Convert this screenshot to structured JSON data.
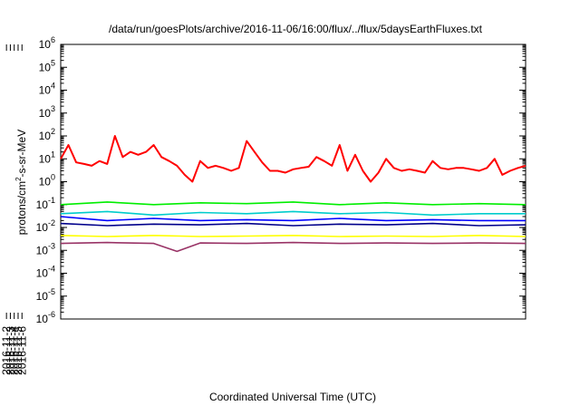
{
  "chart_data": {
    "type": "line",
    "title": "/data/run/goesPlots/archive/2016-11-06/16:00/flux/../flux/5daysEarthFluxes.txt",
    "xlabel": "Coordinated Universal Time (UTC)",
    "ylabel": {
      "pre": "protons/cm",
      "sup": "2",
      "post": "-s-sr-MeV"
    },
    "y_scale": "log",
    "ylim": [
      1e-06,
      1000000.0
    ],
    "y_ticks": [
      {
        "exp": "-6"
      },
      {
        "exp": "-5"
      },
      {
        "exp": "-4"
      },
      {
        "exp": "-3"
      },
      {
        "exp": "-2"
      },
      {
        "exp": "-1"
      },
      {
        "exp": "0"
      },
      {
        "exp": "1"
      },
      {
        "exp": "2"
      },
      {
        "exp": "3"
      },
      {
        "exp": "4"
      },
      {
        "exp": "5"
      },
      {
        "exp": "6"
      }
    ],
    "y_tick_base": "10",
    "xlim": [
      "2016-11-01T16:00",
      "2016-11-06T16:00"
    ],
    "x_ticks": [
      "2016-11-2",
      "2016-11-3",
      "2016-11-4",
      "2016-11-5",
      "2016-11-6"
    ],
    "grid": false,
    "series": [
      {
        "color": "#ff0000",
        "x": [
          "2016-11-01T16:00",
          "2016-11-01T18:00",
          "2016-11-01T20:00",
          "2016-11-01T22:00",
          "2016-11-02T00:00",
          "2016-11-02T02:00",
          "2016-11-02T04:00",
          "2016-11-02T06:00",
          "2016-11-02T08:00",
          "2016-11-02T10:00",
          "2016-11-02T12:00",
          "2016-11-02T14:00",
          "2016-11-02T16:00",
          "2016-11-02T18:00",
          "2016-11-02T20:00",
          "2016-11-02T22:00",
          "2016-11-03T00:00",
          "2016-11-03T02:00",
          "2016-11-03T04:00",
          "2016-11-03T06:00",
          "2016-11-03T08:00",
          "2016-11-03T10:00",
          "2016-11-03T12:00",
          "2016-11-03T14:00",
          "2016-11-03T16:00",
          "2016-11-03T18:00",
          "2016-11-03T20:00",
          "2016-11-03T22:00",
          "2016-11-04T00:00",
          "2016-11-04T02:00",
          "2016-11-04T04:00",
          "2016-11-04T06:00",
          "2016-11-04T08:00",
          "2016-11-04T10:00",
          "2016-11-04T12:00",
          "2016-11-04T14:00",
          "2016-11-04T16:00",
          "2016-11-04T18:00",
          "2016-11-04T20:00",
          "2016-11-04T22:00",
          "2016-11-05T00:00",
          "2016-11-05T02:00",
          "2016-11-05T04:00",
          "2016-11-05T06:00",
          "2016-11-05T08:00",
          "2016-11-05T10:00",
          "2016-11-05T12:00",
          "2016-11-05T14:00",
          "2016-11-05T16:00",
          "2016-11-05T18:00",
          "2016-11-05T20:00",
          "2016-11-05T22:00",
          "2016-11-06T00:00",
          "2016-11-06T02:00",
          "2016-11-06T04:00",
          "2016-11-06T06:00",
          "2016-11-06T08:00",
          "2016-11-06T10:00",
          "2016-11-06T12:00",
          "2016-11-06T14:00",
          "2016-11-06T16:00"
        ],
        "values": [
          10,
          40,
          7,
          6,
          5,
          8,
          6,
          100,
          12,
          20,
          15,
          20,
          40,
          12,
          8,
          5,
          2,
          1,
          8,
          4,
          5,
          4,
          3,
          4,
          60,
          20,
          7,
          3,
          3,
          2.5,
          3.5,
          4,
          4.5,
          12,
          8,
          5,
          40,
          3,
          15,
          3,
          1,
          2.5,
          10,
          4,
          3,
          3.5,
          3,
          2.5,
          8,
          4,
          3.5,
          4,
          4,
          3.5,
          3,
          4,
          10,
          2,
          3,
          4,
          5
        ]
      },
      {
        "color": "#00ee00",
        "x": [
          "2016-11-01T16:00",
          "2016-11-02T04:00",
          "2016-11-02T16:00",
          "2016-11-03T04:00",
          "2016-11-03T16:00",
          "2016-11-04T04:00",
          "2016-11-04T16:00",
          "2016-11-05T04:00",
          "2016-11-05T16:00",
          "2016-11-06T04:00",
          "2016-11-06T16:00"
        ],
        "values": [
          0.1,
          0.13,
          0.1,
          0.12,
          0.11,
          0.13,
          0.1,
          0.12,
          0.1,
          0.11,
          0.1
        ]
      },
      {
        "color": "#00cccc",
        "x": [
          "2016-11-01T16:00",
          "2016-11-02T04:00",
          "2016-11-02T16:00",
          "2016-11-03T04:00",
          "2016-11-03T16:00",
          "2016-11-04T04:00",
          "2016-11-04T16:00",
          "2016-11-05T04:00",
          "2016-11-05T16:00",
          "2016-11-06T04:00",
          "2016-11-06T16:00"
        ],
        "values": [
          0.04,
          0.05,
          0.035,
          0.045,
          0.04,
          0.05,
          0.04,
          0.045,
          0.035,
          0.04,
          0.04
        ]
      },
      {
        "color": "#0000ff",
        "x": [
          "2016-11-01T16:00",
          "2016-11-02T04:00",
          "2016-11-02T16:00",
          "2016-11-03T04:00",
          "2016-11-03T16:00",
          "2016-11-04T04:00",
          "2016-11-04T16:00",
          "2016-11-05T04:00",
          "2016-11-05T16:00",
          "2016-11-06T04:00",
          "2016-11-06T16:00"
        ],
        "values": [
          0.03,
          0.02,
          0.025,
          0.02,
          0.022,
          0.02,
          0.025,
          0.02,
          0.022,
          0.02,
          0.02
        ]
      },
      {
        "color": "#00008b",
        "x": [
          "2016-11-01T16:00",
          "2016-11-02T04:00",
          "2016-11-02T16:00",
          "2016-11-03T04:00",
          "2016-11-03T16:00",
          "2016-11-04T04:00",
          "2016-11-04T16:00",
          "2016-11-05T04:00",
          "2016-11-05T16:00",
          "2016-11-06T04:00",
          "2016-11-06T16:00"
        ],
        "values": [
          0.015,
          0.012,
          0.014,
          0.013,
          0.015,
          0.012,
          0.014,
          0.013,
          0.015,
          0.012,
          0.013
        ]
      },
      {
        "color": "#ffff00",
        "x": [
          "2016-11-01T16:00",
          "2016-11-02T04:00",
          "2016-11-02T16:00",
          "2016-11-03T04:00",
          "2016-11-03T16:00",
          "2016-11-04T04:00",
          "2016-11-04T16:00",
          "2016-11-05T04:00",
          "2016-11-05T16:00",
          "2016-11-06T04:00",
          "2016-11-06T16:00"
        ],
        "values": [
          0.0045,
          0.004,
          0.0045,
          0.004,
          0.0042,
          0.0045,
          0.004,
          0.0042,
          0.004,
          0.0045,
          0.004
        ]
      },
      {
        "color": "#993366",
        "x": [
          "2016-11-01T16:00",
          "2016-11-02T04:00",
          "2016-11-02T16:00",
          "2016-11-02T22:00",
          "2016-11-03T04:00",
          "2016-11-03T16:00",
          "2016-11-04T04:00",
          "2016-11-04T16:00",
          "2016-11-05T04:00",
          "2016-11-05T16:00",
          "2016-11-06T04:00",
          "2016-11-06T16:00"
        ],
        "values": [
          0.002,
          0.0022,
          0.002,
          0.0009,
          0.0021,
          0.002,
          0.0022,
          0.002,
          0.0021,
          0.002,
          0.0021,
          0.002
        ]
      }
    ]
  }
}
